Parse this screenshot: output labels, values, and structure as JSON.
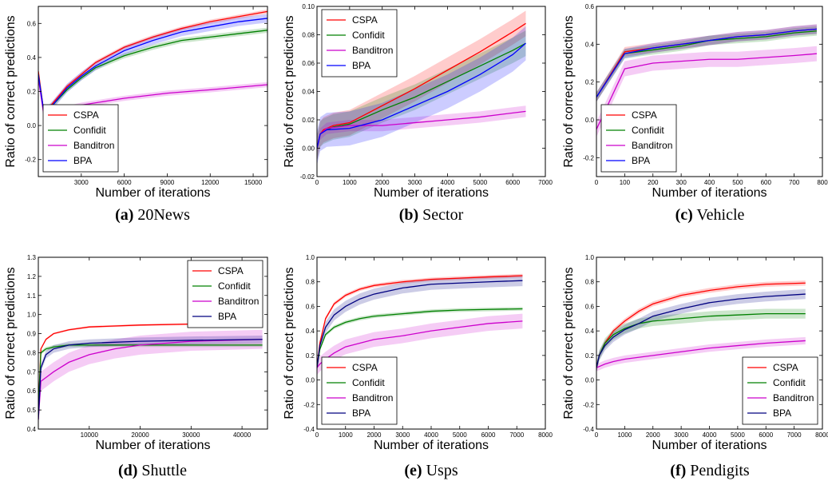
{
  "chart_data": [
    {
      "type": "line",
      "caption_label": "(a)",
      "caption": "20News",
      "xlabel": "Number of iterations",
      "ylabel": "Ratio of correct predictions",
      "xlim": [
        0,
        16000
      ],
      "ylim": [
        -0.3,
        0.7
      ],
      "xticks": [
        3000,
        6000,
        9000,
        12000,
        15000
      ],
      "xtick_labels": [
        "3000",
        "6000",
        "9000",
        "12000",
        "15000"
      ],
      "yticks": [
        -0.2,
        0.0,
        0.2,
        0.4,
        0.6
      ],
      "ytick_labels": [
        "-0.2",
        "0.0",
        "0.2",
        "0.4",
        "0.6"
      ],
      "legend_position": "lower-left",
      "series": [
        {
          "name": "CSPA",
          "color": "#ff0000",
          "x": [
            0,
            400,
            1000,
            2000,
            3000,
            4000,
            6000,
            8000,
            10000,
            12000,
            14000,
            16000
          ],
          "values": [
            0.32,
            0.07,
            0.13,
            0.23,
            0.3,
            0.37,
            0.46,
            0.52,
            0.57,
            0.61,
            0.64,
            0.67
          ],
          "band": 0.012
        },
        {
          "name": "Confidit",
          "color": "#008000",
          "x": [
            0,
            400,
            1000,
            2000,
            3000,
            4000,
            6000,
            8000,
            10000,
            12000,
            14000,
            16000
          ],
          "values": [
            0.3,
            0.07,
            0.12,
            0.21,
            0.28,
            0.34,
            0.41,
            0.46,
            0.5,
            0.52,
            0.54,
            0.56
          ],
          "band": 0.015
        },
        {
          "name": "Banditron",
          "color": "#cc00cc",
          "x": [
            0,
            400,
            1000,
            3000,
            6000,
            9000,
            12000,
            16000
          ],
          "values": [
            0.28,
            0.05,
            0.08,
            0.12,
            0.16,
            0.19,
            0.21,
            0.24
          ],
          "band": 0.015
        },
        {
          "name": "BPA",
          "color": "#0000ff",
          "x": [
            0,
            400,
            1000,
            2000,
            3000,
            4000,
            6000,
            8000,
            10000,
            12000,
            14000,
            16000
          ],
          "values": [
            0.3,
            0.07,
            0.12,
            0.22,
            0.29,
            0.35,
            0.44,
            0.5,
            0.55,
            0.58,
            0.61,
            0.63
          ],
          "band": 0.025
        }
      ]
    },
    {
      "type": "line",
      "caption_label": "(b)",
      "caption": "Sector",
      "xlabel": "Number of iterations",
      "ylabel": "Ratio of correct predictions",
      "xlim": [
        0,
        7000
      ],
      "ylim": [
        -0.02,
        0.1
      ],
      "xticks": [
        0,
        1000,
        2000,
        3000,
        4000,
        5000,
        6000,
        7000
      ],
      "xtick_labels": [
        "0",
        "1000",
        "2000",
        "3000",
        "4000",
        "5000",
        "6000",
        "7000"
      ],
      "yticks": [
        -0.02,
        0.0,
        0.02,
        0.04,
        0.06,
        0.08,
        0.1
      ],
      "ytick_labels": [
        "-0.02",
        "0.00",
        "0.02",
        "0.04",
        "0.06",
        "0.08",
        "0.10"
      ],
      "legend_position": "upper-left",
      "series": [
        {
          "name": "CSPA",
          "color": "#ff0000",
          "x": [
            0,
            100,
            200,
            500,
            1000,
            2000,
            3000,
            4000,
            5000,
            6000,
            6400
          ],
          "values": [
            0.0,
            0.01,
            0.013,
            0.016,
            0.018,
            0.03,
            0.042,
            0.055,
            0.068,
            0.082,
            0.088
          ],
          "band": 0.009
        },
        {
          "name": "Confidit",
          "color": "#008000",
          "x": [
            0,
            100,
            200,
            500,
            1000,
            2000,
            3000,
            4000,
            5000,
            6000,
            6400
          ],
          "values": [
            0.0,
            0.01,
            0.012,
            0.015,
            0.017,
            0.027,
            0.036,
            0.047,
            0.058,
            0.069,
            0.074
          ],
          "band": 0.009
        },
        {
          "name": "Banditron",
          "color": "#cc00cc",
          "x": [
            0,
            100,
            300,
            1000,
            2000,
            3000,
            4000,
            5000,
            6400
          ],
          "values": [
            0.0,
            0.01,
            0.014,
            0.016,
            0.016,
            0.018,
            0.02,
            0.022,
            0.026
          ],
          "band": 0.004
        },
        {
          "name": "BPA",
          "color": "#0000ff",
          "x": [
            0,
            100,
            300,
            1000,
            2000,
            3000,
            4000,
            5000,
            6000,
            6400
          ],
          "values": [
            0.0,
            0.01,
            0.013,
            0.014,
            0.02,
            0.03,
            0.04,
            0.052,
            0.066,
            0.074
          ],
          "band": 0.012
        }
      ]
    },
    {
      "type": "line",
      "caption_label": "(c)",
      "caption": "Vehicle",
      "xlabel": "Number of iterations",
      "ylabel": "Ratio of correct predictions",
      "xlim": [
        0,
        800
      ],
      "ylim": [
        -0.3,
        0.6
      ],
      "xticks": [
        0,
        100,
        200,
        300,
        400,
        500,
        600,
        700,
        800
      ],
      "xtick_labels": [
        "0",
        "100",
        "200",
        "300",
        "400",
        "500",
        "600",
        "700",
        "800"
      ],
      "yticks": [
        -0.2,
        0.0,
        0.2,
        0.4,
        0.6
      ],
      "ytick_labels": [
        "-0.2",
        "0.0",
        "0.2",
        "0.4",
        "0.6"
      ],
      "legend_position": "lower-left",
      "series": [
        {
          "name": "CSPA",
          "color": "#ff0000",
          "x": [
            0,
            100,
            200,
            300,
            400,
            500,
            600,
            700,
            780
          ],
          "values": [
            0.12,
            0.36,
            0.38,
            0.4,
            0.42,
            0.44,
            0.45,
            0.47,
            0.48
          ],
          "band": 0.025
        },
        {
          "name": "Confidit",
          "color": "#008000",
          "x": [
            0,
            100,
            200,
            300,
            400,
            500,
            600,
            700,
            780
          ],
          "values": [
            0.12,
            0.35,
            0.37,
            0.39,
            0.42,
            0.43,
            0.44,
            0.46,
            0.47
          ],
          "band": 0.025
        },
        {
          "name": "Banditron",
          "color": "#cc00cc",
          "x": [
            0,
            100,
            200,
            300,
            400,
            500,
            600,
            700,
            780
          ],
          "values": [
            -0.05,
            0.27,
            0.3,
            0.31,
            0.32,
            0.32,
            0.33,
            0.34,
            0.35
          ],
          "band": 0.04
        },
        {
          "name": "BPA",
          "color": "#0000ff",
          "x": [
            0,
            100,
            200,
            300,
            400,
            500,
            600,
            700,
            780
          ],
          "values": [
            0.12,
            0.35,
            0.38,
            0.4,
            0.42,
            0.44,
            0.45,
            0.47,
            0.48
          ],
          "band": 0.025
        }
      ]
    },
    {
      "type": "line",
      "caption_label": "(d)",
      "caption": "Shuttle",
      "xlabel": "Number of iterations",
      "ylabel": "Ratio of correct predictions",
      "xlim": [
        0,
        45000
      ],
      "ylim": [
        0.4,
        1.3
      ],
      "xticks": [
        10000,
        20000,
        30000,
        40000
      ],
      "xtick_labels": [
        "10000",
        "20000",
        "30000",
        "40000"
      ],
      "yticks": [
        0.4,
        0.5,
        0.6,
        0.7,
        0.8,
        0.9,
        1.0,
        1.1,
        1.2,
        1.3
      ],
      "ytick_labels": [
        "0.4",
        "0.5",
        "0.6",
        "0.7",
        "0.8",
        "0.9",
        "1.0",
        "1.1",
        "1.2",
        "1.3"
      ],
      "legend_position": "top-right",
      "series": [
        {
          "name": "CSPA",
          "color": "#ff0000",
          "x": [
            0,
            500,
            1500,
            3000,
            6000,
            10000,
            15000,
            20000,
            30000,
            44000
          ],
          "values": [
            0.5,
            0.82,
            0.87,
            0.9,
            0.92,
            0.935,
            0.94,
            0.945,
            0.95,
            0.955
          ],
          "band": 0.005
        },
        {
          "name": "Confidit",
          "color": "#008000",
          "x": [
            0,
            500,
            1500,
            3000,
            6000,
            10000,
            20000,
            30000,
            44000
          ],
          "values": [
            0.5,
            0.8,
            0.82,
            0.83,
            0.84,
            0.84,
            0.84,
            0.84,
            0.84
          ],
          "band": 0.01
        },
        {
          "name": "Banditron",
          "color": "#cc00cc",
          "x": [
            0,
            500,
            1500,
            3000,
            6000,
            10000,
            15000,
            20000,
            30000,
            44000
          ],
          "values": [
            0.45,
            0.65,
            0.67,
            0.7,
            0.75,
            0.79,
            0.82,
            0.84,
            0.86,
            0.87
          ],
          "band": 0.05
        },
        {
          "name": "BPA",
          "color": "#000080",
          "x": [
            0,
            500,
            1500,
            3000,
            6000,
            10000,
            20000,
            30000,
            44000
          ],
          "values": [
            0.45,
            0.72,
            0.79,
            0.82,
            0.84,
            0.85,
            0.86,
            0.865,
            0.87
          ],
          "band": 0.02
        }
      ]
    },
    {
      "type": "line",
      "caption_label": "(e)",
      "caption": "Usps",
      "xlabel": "Number of iterations",
      "ylabel": "Ratio of correct predictions",
      "xlim": [
        0,
        8000
      ],
      "ylim": [
        -0.4,
        1.0
      ],
      "xticks": [
        0,
        1000,
        2000,
        3000,
        4000,
        5000,
        6000,
        7000,
        8000
      ],
      "xtick_labels": [
        "0",
        "1000",
        "2000",
        "3000",
        "4000",
        "5000",
        "6000",
        "7000",
        "8000"
      ],
      "yticks": [
        -0.4,
        -0.2,
        0.0,
        0.2,
        0.4,
        0.6,
        0.8,
        1.0
      ],
      "ytick_labels": [
        "-0.4",
        "-0.2",
        "0.0",
        "0.2",
        "0.4",
        "0.6",
        "0.8",
        "1.0"
      ],
      "legend_position": "lower-left",
      "series": [
        {
          "name": "CSPA",
          "color": "#ff0000",
          "x": [
            0,
            100,
            300,
            600,
            1000,
            1500,
            2000,
            3000,
            4000,
            5000,
            6000,
            7200
          ],
          "values": [
            0.1,
            0.3,
            0.5,
            0.62,
            0.69,
            0.74,
            0.77,
            0.8,
            0.82,
            0.83,
            0.84,
            0.85
          ],
          "band": 0.015
        },
        {
          "name": "Confidit",
          "color": "#008000",
          "x": [
            0,
            100,
            300,
            600,
            1000,
            1500,
            2000,
            3000,
            4000,
            5000,
            6000,
            7200
          ],
          "values": [
            0.1,
            0.25,
            0.37,
            0.43,
            0.47,
            0.5,
            0.52,
            0.54,
            0.56,
            0.57,
            0.575,
            0.58
          ],
          "band": 0.015
        },
        {
          "name": "Banditron",
          "color": "#cc00cc",
          "x": [
            0,
            100,
            300,
            600,
            1000,
            2000,
            3000,
            4000,
            5000,
            6000,
            7200
          ],
          "values": [
            0.1,
            0.13,
            0.17,
            0.22,
            0.27,
            0.33,
            0.36,
            0.4,
            0.43,
            0.46,
            0.48
          ],
          "band": 0.06
        },
        {
          "name": "BPA",
          "color": "#000080",
          "x": [
            0,
            100,
            300,
            600,
            1000,
            1500,
            2000,
            3000,
            4000,
            5000,
            6000,
            7200
          ],
          "values": [
            0.1,
            0.28,
            0.43,
            0.53,
            0.6,
            0.66,
            0.7,
            0.75,
            0.78,
            0.79,
            0.8,
            0.81
          ],
          "band": 0.045
        }
      ]
    },
    {
      "type": "line",
      "caption_label": "(f)",
      "caption": "Pendigits",
      "xlabel": "Number of iterations",
      "ylabel": "Ratio of correct predictions",
      "xlim": [
        0,
        8000
      ],
      "ylim": [
        -0.4,
        1.0
      ],
      "xticks": [
        0,
        1000,
        2000,
        3000,
        4000,
        5000,
        6000,
        7000,
        8000
      ],
      "xtick_labels": [
        "0",
        "1000",
        "2000",
        "3000",
        "4000",
        "5000",
        "6000",
        "7000",
        "8000"
      ],
      "yticks": [
        -0.4,
        -0.2,
        0.0,
        0.2,
        0.4,
        0.6,
        0.8,
        1.0
      ],
      "ytick_labels": [
        "-0.4",
        "-0.2",
        "0.0",
        "0.2",
        "0.4",
        "0.6",
        "0.8",
        "1.0"
      ],
      "legend_position": "lower-right",
      "series": [
        {
          "name": "CSPA",
          "color": "#ff0000",
          "x": [
            0,
            100,
            300,
            600,
            1000,
            1500,
            2000,
            3000,
            4000,
            5000,
            6000,
            7400
          ],
          "values": [
            0.1,
            0.2,
            0.3,
            0.4,
            0.48,
            0.56,
            0.62,
            0.69,
            0.73,
            0.76,
            0.78,
            0.79
          ],
          "band": 0.02
        },
        {
          "name": "Confidit",
          "color": "#008000",
          "x": [
            0,
            100,
            300,
            600,
            1000,
            1500,
            2000,
            3000,
            4000,
            5000,
            6000,
            7400
          ],
          "values": [
            0.1,
            0.2,
            0.3,
            0.37,
            0.42,
            0.46,
            0.48,
            0.5,
            0.52,
            0.53,
            0.54,
            0.54
          ],
          "band": 0.04
        },
        {
          "name": "Banditron",
          "color": "#cc00cc",
          "x": [
            0,
            100,
            300,
            600,
            1000,
            2000,
            3000,
            4000,
            5000,
            6000,
            7400
          ],
          "values": [
            0.1,
            0.11,
            0.13,
            0.15,
            0.17,
            0.2,
            0.23,
            0.26,
            0.28,
            0.3,
            0.32
          ],
          "band": 0.03
        },
        {
          "name": "BPA",
          "color": "#000080",
          "x": [
            0,
            100,
            300,
            600,
            1000,
            1500,
            2000,
            3000,
            4000,
            5000,
            6000,
            7400
          ],
          "values": [
            0.1,
            0.2,
            0.28,
            0.35,
            0.41,
            0.46,
            0.52,
            0.58,
            0.63,
            0.66,
            0.68,
            0.7
          ],
          "band": 0.04
        }
      ]
    }
  ]
}
